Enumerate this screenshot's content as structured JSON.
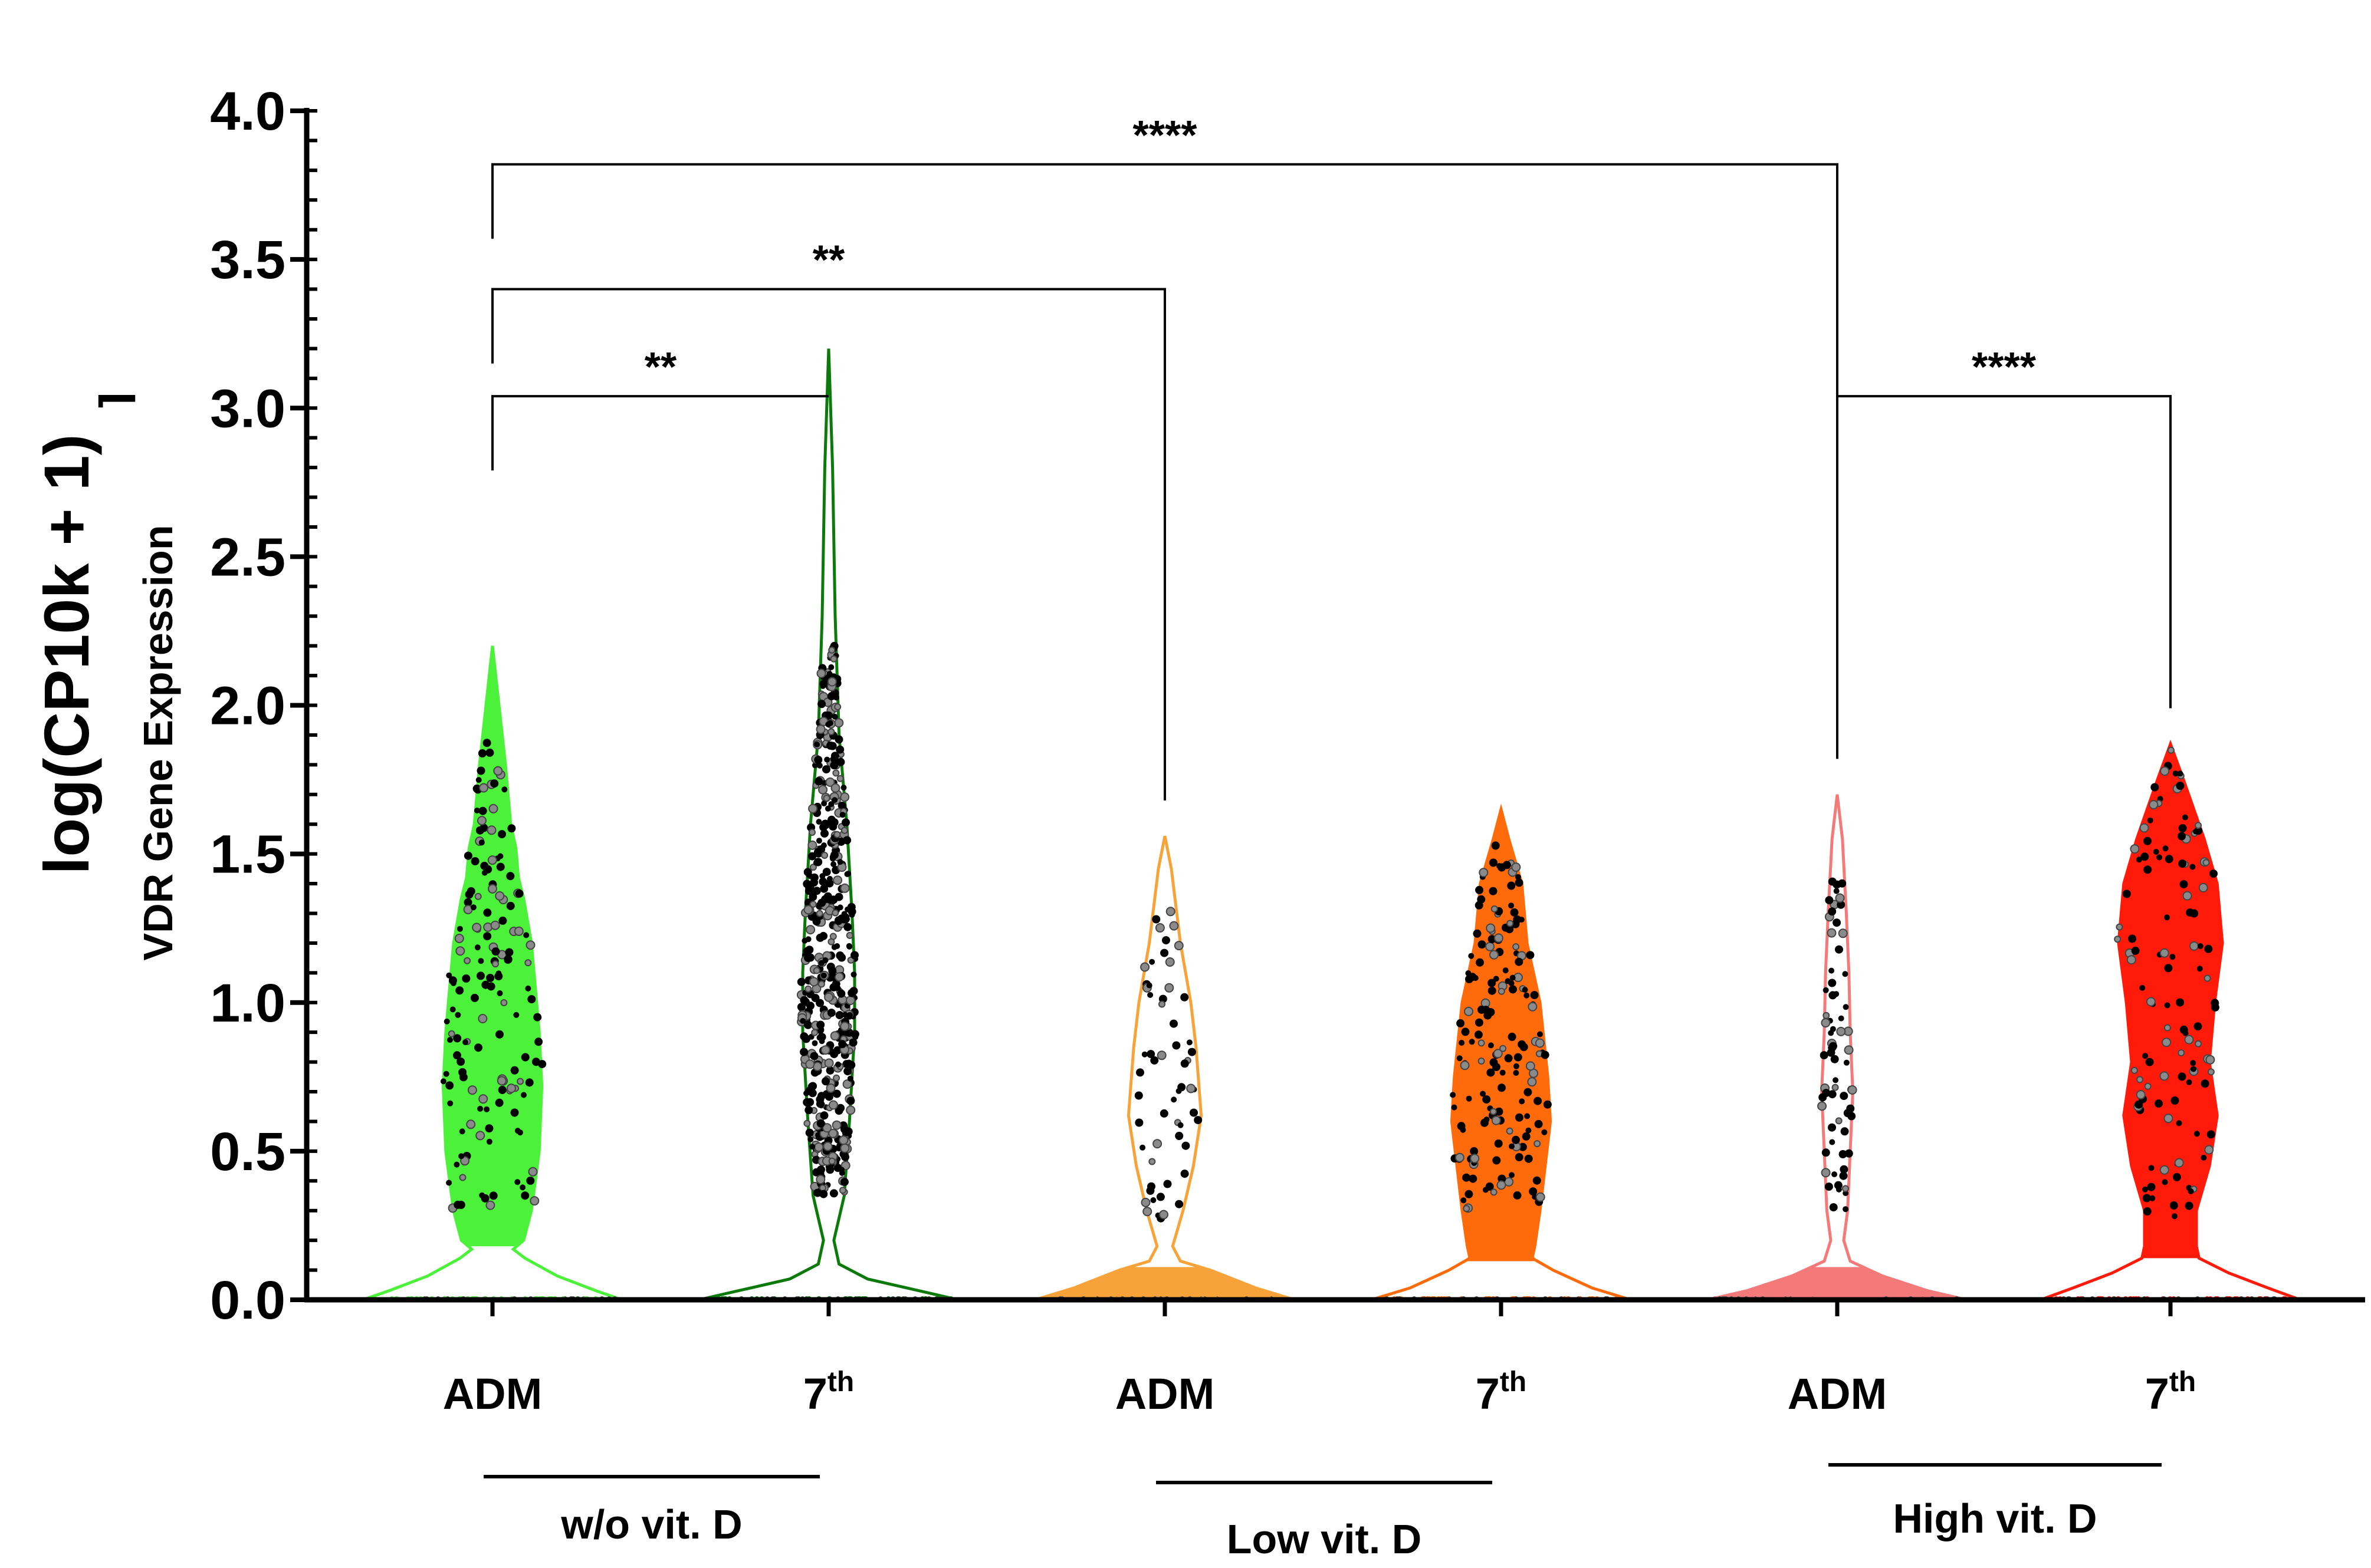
{
  "chart_data": {
    "type": "violin",
    "ylabel_main": "log(CP10k + 1)",
    "ylabel_sub": "VDR Gene Expression",
    "ylabel_mark": "⌉",
    "ylim": [
      0,
      4
    ],
    "ytick_values": [
      0,
      0.5,
      1,
      1.5,
      2,
      2.5,
      3,
      3.5,
      4
    ],
    "ytick_labels": [
      "0.0",
      "0.5",
      "1.0",
      "1.5",
      "2.0",
      "2.5",
      "3.0",
      "3.5",
      "4.0"
    ],
    "colors": {
      "wo_adm": "#4cf23a",
      "wo_7th": "#0b7a0b",
      "low_adm": "#f7a33a",
      "low_7th": "#ff6a0a",
      "high_adm": "#f47a7a",
      "high_7th": "#ff1a0a",
      "axis": "#000000"
    },
    "categories": [
      {
        "id": "wo_adm",
        "base": "ADM",
        "sup": "",
        "max": 2.2,
        "mode": "fill_above",
        "fill_floor": 0.18,
        "dots": 160,
        "dot_min": 0.3,
        "dot_max": 1.9,
        "shape": [
          [
            0,
            2.2
          ],
          [
            0.1,
            1.8
          ],
          [
            0.14,
            1.6
          ],
          [
            0.18,
            1.52
          ],
          [
            0.2,
            1.42
          ],
          [
            0.24,
            1.35
          ],
          [
            0.3,
            1.2
          ],
          [
            0.34,
            1.0
          ],
          [
            0.36,
            0.9
          ],
          [
            0.38,
            0.72
          ],
          [
            0.36,
            0.5
          ],
          [
            0.3,
            0.3
          ],
          [
            0.24,
            0.2
          ],
          [
            0.16,
            0.17
          ],
          [
            0.25,
            0.14
          ],
          [
            0.5,
            0.08
          ],
          [
            0.8,
            0.03
          ],
          [
            1.0,
            0
          ]
        ]
      },
      {
        "id": "wo_7th",
        "base": "7",
        "sup": "th",
        "max": 3.2,
        "mode": "outline",
        "dots": 520,
        "dot_min": 0.35,
        "dot_max": 2.2,
        "shape": [
          [
            0,
            3.2
          ],
          [
            0.03,
            2.8
          ],
          [
            0.05,
            2.3
          ],
          [
            0.08,
            1.9
          ],
          [
            0.14,
            1.6
          ],
          [
            0.18,
            1.3
          ],
          [
            0.2,
            1.1
          ],
          [
            0.2,
            0.9
          ],
          [
            0.16,
            0.6
          ],
          [
            0.12,
            0.35
          ],
          [
            0.04,
            0.2
          ],
          [
            0.08,
            0.12
          ],
          [
            0.3,
            0.07
          ],
          [
            0.7,
            0.03
          ],
          [
            1.0,
            0
          ]
        ]
      },
      {
        "id": "low_adm",
        "base": "ADM",
        "sup": "",
        "max": 1.56,
        "mode": "fill_below",
        "fill_ceil": 0.11,
        "dots": 60,
        "dot_min": 0.25,
        "dot_max": 1.35,
        "shape": [
          [
            0,
            1.56
          ],
          [
            0.05,
            1.45
          ],
          [
            0.12,
            1.2
          ],
          [
            0.2,
            1.0
          ],
          [
            0.24,
            0.85
          ],
          [
            0.28,
            0.62
          ],
          [
            0.22,
            0.45
          ],
          [
            0.14,
            0.3
          ],
          [
            0.06,
            0.18
          ],
          [
            0.12,
            0.13
          ],
          [
            0.35,
            0.1
          ],
          [
            0.7,
            0.04
          ],
          [
            1.0,
            0
          ]
        ]
      },
      {
        "id": "low_7th",
        "base": "7",
        "sup": "th",
        "max": 1.65,
        "mode": "fill_above",
        "fill_floor": 0.13,
        "dots": 170,
        "dot_min": 0.3,
        "dot_max": 1.6,
        "shape": [
          [
            0,
            1.65
          ],
          [
            0.06,
            1.55
          ],
          [
            0.16,
            1.4
          ],
          [
            0.2,
            1.2
          ],
          [
            0.3,
            1.0
          ],
          [
            0.36,
            0.75
          ],
          [
            0.38,
            0.6
          ],
          [
            0.34,
            0.45
          ],
          [
            0.3,
            0.3
          ],
          [
            0.26,
            0.18
          ],
          [
            0.24,
            0.14
          ],
          [
            0.4,
            0.1
          ],
          [
            0.7,
            0.04
          ],
          [
            1.0,
            0
          ]
        ]
      },
      {
        "id": "high_adm",
        "base": "ADM",
        "sup": "",
        "max": 1.7,
        "mode": "fill_below",
        "fill_ceil": 0.11,
        "dots": 70,
        "dot_min": 0.3,
        "dot_max": 1.45,
        "shape": [
          [
            0,
            1.7
          ],
          [
            0.04,
            1.55
          ],
          [
            0.07,
            1.3
          ],
          [
            0.09,
            1.1
          ],
          [
            0.1,
            0.9
          ],
          [
            0.12,
            0.7
          ],
          [
            0.1,
            0.5
          ],
          [
            0.08,
            0.3
          ],
          [
            0.05,
            0.2
          ],
          [
            0.1,
            0.13
          ],
          [
            0.35,
            0.08
          ],
          [
            0.7,
            0.03
          ],
          [
            1.0,
            0
          ]
        ]
      },
      {
        "id": "high_7th",
        "base": "7",
        "sup": "th",
        "max": 1.87,
        "mode": "fill_above",
        "fill_floor": 0.14,
        "dots": 120,
        "dot_min": 0.27,
        "dot_max": 1.87,
        "shape": [
          [
            0,
            1.87
          ],
          [
            0.1,
            1.75
          ],
          [
            0.26,
            1.55
          ],
          [
            0.36,
            1.4
          ],
          [
            0.4,
            1.2
          ],
          [
            0.34,
            1.0
          ],
          [
            0.3,
            0.8
          ],
          [
            0.36,
            0.62
          ],
          [
            0.3,
            0.45
          ],
          [
            0.2,
            0.3
          ],
          [
            0.2,
            0.18
          ],
          [
            0.22,
            0.14
          ],
          [
            0.45,
            0.09
          ],
          [
            0.75,
            0.04
          ],
          [
            1.0,
            0
          ]
        ]
      }
    ],
    "groups": [
      {
        "label": "w/o vit. D",
        "members": [
          0,
          1
        ]
      },
      {
        "label": "Low vit. D",
        "members": [
          2,
          3
        ]
      },
      {
        "label": "High vit. D",
        "members": [
          4,
          5
        ]
      }
    ],
    "comparisons": [
      {
        "from": 0,
        "to": 4,
        "y": 3.82,
        "label": "****"
      },
      {
        "from": 0,
        "to": 2,
        "y": 3.4,
        "label": "**"
      },
      {
        "from": 0,
        "to": 1,
        "y": 3.04,
        "label": "**"
      },
      {
        "from": 4,
        "to": 5,
        "y": 3.04,
        "label": "****"
      }
    ]
  }
}
